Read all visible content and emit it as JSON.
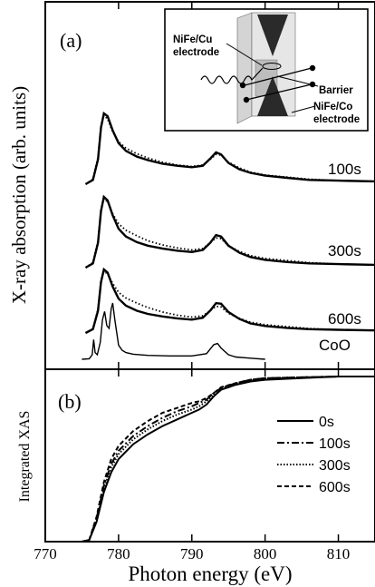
{
  "chart_data": [
    {
      "panel_label": "(a)",
      "type": "line",
      "ylabel": "X-ray absorption (arb. units)",
      "xlabel": "",
      "xlim": [
        770,
        815
      ],
      "inset": {
        "labels": [
          "NiFe/Cu electrode",
          "Barrier",
          "NiFe/Co electrode"
        ]
      },
      "spectra": [
        {
          "name": "100s",
          "solid": [
            [
              775.5,
              0
            ],
            [
              776.5,
              0.06
            ],
            [
              777.2,
              0.35
            ],
            [
              777.6,
              0.8
            ],
            [
              778,
              1.0
            ],
            [
              778.5,
              0.96
            ],
            [
              779.2,
              0.76
            ],
            [
              780,
              0.58
            ],
            [
              781,
              0.47
            ],
            [
              782.5,
              0.39
            ],
            [
              784,
              0.34
            ],
            [
              786,
              0.29
            ],
            [
              788,
              0.26
            ],
            [
              790,
              0.24
            ],
            [
              791.5,
              0.26
            ],
            [
              792.5,
              0.36
            ],
            [
              793.3,
              0.45
            ],
            [
              794,
              0.42
            ],
            [
              795,
              0.3
            ],
            [
              796.5,
              0.21
            ],
            [
              798,
              0.16
            ],
            [
              800,
              0.12
            ],
            [
              803,
              0.09
            ],
            [
              806,
              0.06
            ],
            [
              810,
              0.05
            ],
            [
              815,
              0.04
            ]
          ],
          "dotted": [
            [
              775.5,
              0
            ],
            [
              776.5,
              0.07
            ],
            [
              777.2,
              0.38
            ],
            [
              777.6,
              0.82
            ],
            [
              778,
              0.97
            ],
            [
              778.5,
              0.92
            ],
            [
              779.2,
              0.74
            ],
            [
              780,
              0.6
            ],
            [
              781,
              0.51
            ],
            [
              782.5,
              0.43
            ],
            [
              784,
              0.37
            ],
            [
              786,
              0.31
            ],
            [
              788,
              0.27
            ],
            [
              790,
              0.25
            ],
            [
              791.5,
              0.27
            ],
            [
              792.5,
              0.35
            ],
            [
              793.3,
              0.42
            ],
            [
              794,
              0.41
            ],
            [
              795,
              0.31
            ],
            [
              796.5,
              0.23
            ],
            [
              798,
              0.17
            ],
            [
              800,
              0.13
            ],
            [
              803,
              0.1
            ],
            [
              806,
              0.07
            ],
            [
              810,
              0.05
            ],
            [
              815,
              0.04
            ]
          ]
        },
        {
          "name": "300s",
          "solid": [
            [
              775.5,
              0
            ],
            [
              776.5,
              0.06
            ],
            [
              777.2,
              0.35
            ],
            [
              777.6,
              0.8
            ],
            [
              778,
              1.0
            ],
            [
              778.5,
              0.95
            ],
            [
              779.2,
              0.74
            ],
            [
              780,
              0.55
            ],
            [
              781,
              0.44
            ],
            [
              782.5,
              0.36
            ],
            [
              784,
              0.31
            ],
            [
              786,
              0.27
            ],
            [
              788,
              0.24
            ],
            [
              790,
              0.22
            ],
            [
              791.5,
              0.25
            ],
            [
              792.5,
              0.35
            ],
            [
              793.3,
              0.46
            ],
            [
              794,
              0.44
            ],
            [
              795,
              0.31
            ],
            [
              796.5,
              0.21
            ],
            [
              798,
              0.15
            ],
            [
              800,
              0.11
            ],
            [
              803,
              0.08
            ],
            [
              806,
              0.06
            ],
            [
              810,
              0.05
            ],
            [
              815,
              0.04
            ]
          ],
          "dotted": [
            [
              775.5,
              0
            ],
            [
              776.5,
              0.07
            ],
            [
              777.2,
              0.38
            ],
            [
              777.6,
              0.82
            ],
            [
              778,
              0.97
            ],
            [
              778.5,
              0.93
            ],
            [
              779.2,
              0.76
            ],
            [
              780,
              0.62
            ],
            [
              781,
              0.53
            ],
            [
              782.5,
              0.45
            ],
            [
              784,
              0.38
            ],
            [
              786,
              0.32
            ],
            [
              788,
              0.28
            ],
            [
              790,
              0.25
            ],
            [
              791.5,
              0.27
            ],
            [
              792.5,
              0.35
            ],
            [
              793.3,
              0.42
            ],
            [
              794,
              0.41
            ],
            [
              795,
              0.31
            ],
            [
              796.5,
              0.23
            ],
            [
              798,
              0.17
            ],
            [
              800,
              0.13
            ],
            [
              803,
              0.1
            ],
            [
              806,
              0.07
            ],
            [
              810,
              0.05
            ],
            [
              815,
              0.04
            ]
          ]
        },
        {
          "name": "600s",
          "solid": [
            [
              775.5,
              0
            ],
            [
              776.5,
              0.06
            ],
            [
              777.2,
              0.35
            ],
            [
              777.6,
              0.8
            ],
            [
              778,
              1.0
            ],
            [
              778.5,
              0.95
            ],
            [
              779.2,
              0.73
            ],
            [
              780,
              0.54
            ],
            [
              781,
              0.43
            ],
            [
              782.5,
              0.35
            ],
            [
              784,
              0.3
            ],
            [
              786,
              0.26
            ],
            [
              788,
              0.23
            ],
            [
              790,
              0.21
            ],
            [
              791.5,
              0.24
            ],
            [
              792.5,
              0.35
            ],
            [
              793.3,
              0.47
            ],
            [
              794,
              0.46
            ],
            [
              795,
              0.33
            ],
            [
              796.5,
              0.22
            ],
            [
              798,
              0.15
            ],
            [
              800,
              0.11
            ],
            [
              803,
              0.08
            ],
            [
              806,
              0.06
            ],
            [
              810,
              0.05
            ],
            [
              815,
              0.04
            ]
          ],
          "dotted": [
            [
              775.5,
              0
            ],
            [
              776.5,
              0.07
            ],
            [
              777.2,
              0.38
            ],
            [
              777.6,
              0.82
            ],
            [
              778,
              0.97
            ],
            [
              778.5,
              0.93
            ],
            [
              779.2,
              0.78
            ],
            [
              780,
              0.64
            ],
            [
              781,
              0.55
            ],
            [
              782.5,
              0.47
            ],
            [
              784,
              0.4
            ],
            [
              786,
              0.33
            ],
            [
              788,
              0.28
            ],
            [
              790,
              0.25
            ],
            [
              791.5,
              0.27
            ],
            [
              792.5,
              0.35
            ],
            [
              793.3,
              0.42
            ],
            [
              794,
              0.41
            ],
            [
              795,
              0.31
            ],
            [
              796.5,
              0.23
            ],
            [
              798,
              0.17
            ],
            [
              800,
              0.13
            ],
            [
              803,
              0.1
            ],
            [
              806,
              0.07
            ],
            [
              810,
              0.05
            ],
            [
              815,
              0.04
            ]
          ]
        },
        {
          "name": "CoO",
          "solid": [
            [
              775,
              0
            ],
            [
              776,
              0.01
            ],
            [
              776.4,
              0.08
            ],
            [
              776.6,
              0.35
            ],
            [
              776.8,
              0.12
            ],
            [
              777.1,
              0.08
            ],
            [
              777.5,
              0.3
            ],
            [
              777.8,
              0.7
            ],
            [
              778.1,
              0.85
            ],
            [
              778.4,
              0.6
            ],
            [
              778.7,
              0.55
            ],
            [
              779,
              0.9
            ],
            [
              779.2,
              1.0
            ],
            [
              779.5,
              0.7
            ],
            [
              780,
              0.25
            ],
            [
              780.5,
              0.16
            ],
            [
              781,
              0.12
            ],
            [
              782,
              0.09
            ],
            [
              784,
              0.07
            ],
            [
              787,
              0.06
            ],
            [
              790,
              0.06
            ],
            [
              792,
              0.1
            ],
            [
              793,
              0.26
            ],
            [
              793.5,
              0.28
            ],
            [
              794,
              0.2
            ],
            [
              795,
              0.08
            ],
            [
              796,
              0.04
            ],
            [
              798,
              0.02
            ],
            [
              800,
              0.0
            ]
          ],
          "dotted": []
        }
      ]
    },
    {
      "panel_label": "(b)",
      "type": "line",
      "ylabel": "Integrated XAS",
      "xlabel": "Photon energy (eV)",
      "xlim": [
        770,
        815
      ],
      "x_ticks": [
        770,
        780,
        790,
        800,
        810
      ],
      "series": [
        {
          "name": "0s",
          "style": "solid",
          "points": [
            [
              775,
              0
            ],
            [
              776,
              0.01
            ],
            [
              777,
              0.12
            ],
            [
              778,
              0.3
            ],
            [
              779,
              0.42
            ],
            [
              780,
              0.5
            ],
            [
              782,
              0.59
            ],
            [
              784,
              0.65
            ],
            [
              786,
              0.7
            ],
            [
              788,
              0.74
            ],
            [
              790,
              0.78
            ],
            [
              791,
              0.8
            ],
            [
              792,
              0.83
            ],
            [
              793,
              0.88
            ],
            [
              794,
              0.92
            ],
            [
              796,
              0.95
            ],
            [
              798,
              0.97
            ],
            [
              800,
              0.98
            ],
            [
              805,
              0.99
            ],
            [
              810,
              1.0
            ],
            [
              815,
              1.0
            ]
          ]
        },
        {
          "name": "100s",
          "style": "dashdot",
          "points": [
            [
              775,
              0
            ],
            [
              776,
              0.01
            ],
            [
              777,
              0.14
            ],
            [
              778,
              0.34
            ],
            [
              779,
              0.47
            ],
            [
              780,
              0.55
            ],
            [
              782,
              0.64
            ],
            [
              784,
              0.7
            ],
            [
              786,
              0.75
            ],
            [
              788,
              0.79
            ],
            [
              790,
              0.82
            ],
            [
              791,
              0.84
            ],
            [
              792,
              0.86
            ],
            [
              793,
              0.9
            ],
            [
              794,
              0.93
            ],
            [
              796,
              0.96
            ],
            [
              798,
              0.98
            ],
            [
              800,
              0.99
            ],
            [
              805,
              0.995
            ],
            [
              810,
              1.0
            ],
            [
              815,
              1.0
            ]
          ]
        },
        {
          "name": "300s",
          "style": "dotted",
          "points": [
            [
              775,
              0
            ],
            [
              776,
              0.01
            ],
            [
              777,
              0.13
            ],
            [
              778,
              0.32
            ],
            [
              779,
              0.45
            ],
            [
              780,
              0.53
            ],
            [
              782,
              0.62
            ],
            [
              784,
              0.68
            ],
            [
              786,
              0.73
            ],
            [
              788,
              0.77
            ],
            [
              790,
              0.8
            ],
            [
              791,
              0.82
            ],
            [
              792,
              0.85
            ],
            [
              793,
              0.89
            ],
            [
              794,
              0.925
            ],
            [
              796,
              0.955
            ],
            [
              798,
              0.975
            ],
            [
              800,
              0.985
            ],
            [
              805,
              0.995
            ],
            [
              810,
              1.0
            ],
            [
              815,
              1.0
            ]
          ]
        },
        {
          "name": "600s",
          "style": "dashed",
          "points": [
            [
              775,
              0
            ],
            [
              776,
              0.01
            ],
            [
              777,
              0.15
            ],
            [
              778,
              0.36
            ],
            [
              779,
              0.5
            ],
            [
              780,
              0.58
            ],
            [
              782,
              0.67
            ],
            [
              784,
              0.73
            ],
            [
              786,
              0.78
            ],
            [
              788,
              0.81
            ],
            [
              790,
              0.84
            ],
            [
              791,
              0.85
            ],
            [
              792,
              0.87
            ],
            [
              793,
              0.9
            ],
            [
              794,
              0.935
            ],
            [
              796,
              0.96
            ],
            [
              798,
              0.98
            ],
            [
              800,
              0.99
            ],
            [
              805,
              0.995
            ],
            [
              810,
              1.0
            ],
            [
              815,
              1.0
            ]
          ]
        }
      ]
    }
  ]
}
